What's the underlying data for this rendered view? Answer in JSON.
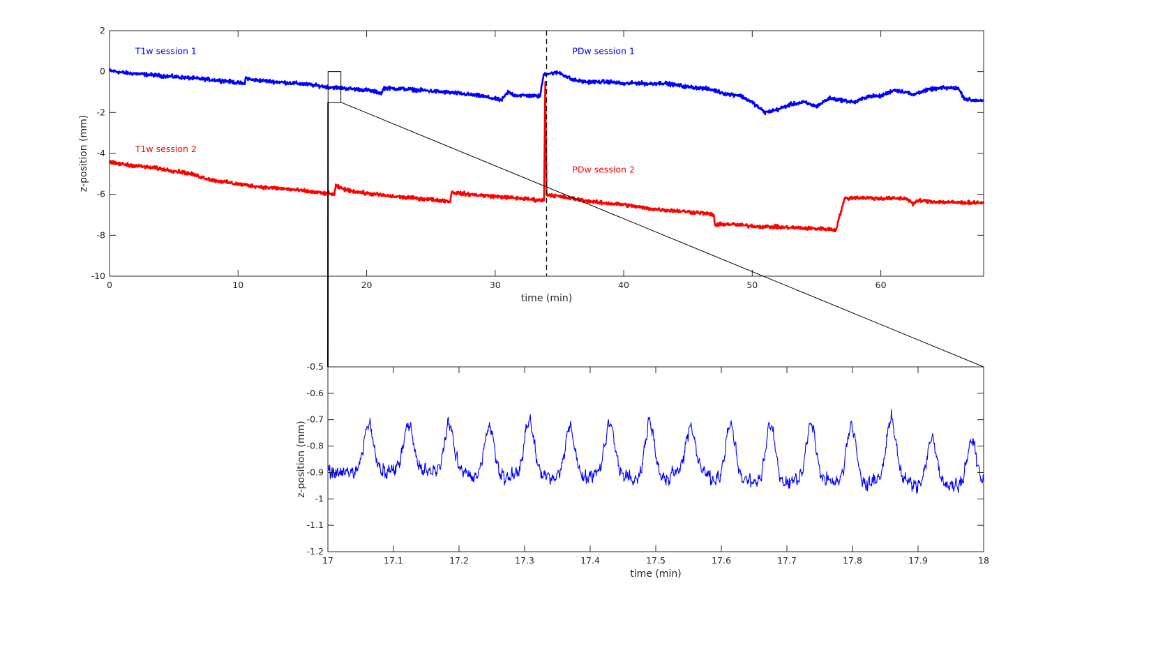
{
  "colors": {
    "blue": "#0000ff",
    "red": "#ff0000",
    "axis": "#262626",
    "background": "#ffffff"
  },
  "chart_data": [
    {
      "type": "line",
      "title": "",
      "xlabel": "time (min)",
      "ylabel": "z-position (mm)",
      "xlim": [
        0,
        68
      ],
      "ylim": [
        -10,
        2
      ],
      "xticks": [
        0,
        10,
        20,
        30,
        40,
        50,
        60
      ],
      "yticks": [
        -10,
        -8,
        -6,
        -4,
        -2,
        0,
        2
      ],
      "xtick_labels": [
        "0",
        "10",
        "20",
        "30",
        "40",
        "50",
        "60"
      ],
      "ytick_labels": [
        "-10",
        "-8",
        "-6",
        "-4",
        "-2",
        "0",
        "2"
      ],
      "grid": false,
      "annotations": [
        {
          "text": "T1w session 1",
          "x": 2,
          "y": 1.0,
          "color": "#0000ff"
        },
        {
          "text": "PDw session 1",
          "x": 36,
          "y": 1.0,
          "color": "#0000ff"
        },
        {
          "text": "T1w session 2",
          "x": 2,
          "y": -3.8,
          "color": "#ff0000"
        },
        {
          "text": "PDw session 2",
          "x": 36,
          "y": -4.8,
          "color": "#ff0000"
        }
      ],
      "vline": {
        "x": 34,
        "style": "dashed",
        "color": "#000000"
      },
      "zoom_box": {
        "x": [
          17,
          18
        ],
        "y": [
          -1.5,
          0
        ]
      },
      "series": [
        {
          "color": "#0000ff",
          "x": [
            0,
            1,
            3,
            5,
            7,
            9,
            10.5,
            10.6,
            11,
            13,
            15,
            17,
            18,
            20,
            21.2,
            21.3,
            23,
            25,
            27,
            29,
            30.5,
            31,
            31.5,
            33.5,
            33.7,
            33.8,
            34,
            35,
            36,
            37,
            38,
            39,
            40,
            41,
            42,
            43,
            44,
            45,
            46,
            47,
            48,
            49,
            50,
            50.5,
            51,
            52,
            53,
            54,
            55,
            56,
            57,
            58,
            59,
            60,
            61,
            62,
            62.5,
            63,
            64,
            65,
            66,
            66.5,
            67,
            68
          ],
          "y": [
            0.05,
            -0.05,
            -0.15,
            -0.25,
            -0.35,
            -0.45,
            -0.6,
            -0.3,
            -0.4,
            -0.5,
            -0.6,
            -0.75,
            -0.8,
            -0.9,
            -1.05,
            -0.8,
            -0.85,
            -0.95,
            -1.05,
            -1.2,
            -1.4,
            -1.0,
            -1.15,
            -1.2,
            -0.4,
            -0.1,
            -0.1,
            -0.05,
            -0.4,
            -0.5,
            -0.5,
            -0.5,
            -0.6,
            -0.55,
            -0.6,
            -0.55,
            -0.65,
            -0.75,
            -0.8,
            -0.9,
            -1.1,
            -1.15,
            -1.5,
            -1.75,
            -2.0,
            -1.85,
            -1.6,
            -1.5,
            -1.7,
            -1.3,
            -1.4,
            -1.5,
            -1.2,
            -1.2,
            -0.9,
            -1.0,
            -1.15,
            -1.0,
            -0.85,
            -0.8,
            -0.8,
            -1.3,
            -1.4,
            -1.4
          ]
        },
        {
          "color": "#ff0000",
          "x": [
            0,
            2,
            4,
            6,
            8,
            10,
            12,
            14,
            16,
            17.5,
            17.6,
            18.5,
            20,
            22,
            24,
            26,
            26.5,
            26.6,
            28,
            30,
            32,
            33.8,
            33.9,
            34,
            36,
            38,
            39,
            40,
            42,
            44,
            46,
            47,
            47.1,
            48,
            50,
            52,
            54,
            56,
            56.5,
            57,
            57.2,
            58,
            60,
            62,
            62.5,
            63,
            64,
            66,
            68
          ],
          "y": [
            -4.45,
            -4.6,
            -4.75,
            -4.95,
            -5.3,
            -5.5,
            -5.65,
            -5.75,
            -5.9,
            -6.0,
            -5.6,
            -5.8,
            -5.95,
            -6.1,
            -6.2,
            -6.3,
            -6.35,
            -5.9,
            -6.0,
            -6.1,
            -6.2,
            -6.3,
            -0.5,
            -6.0,
            -6.2,
            -6.4,
            -6.45,
            -6.5,
            -6.7,
            -6.8,
            -6.9,
            -7.0,
            -7.5,
            -7.45,
            -7.55,
            -7.6,
            -7.65,
            -7.7,
            -7.75,
            -6.6,
            -6.2,
            -6.15,
            -6.2,
            -6.2,
            -6.45,
            -6.3,
            -6.35,
            -6.4,
            -6.4
          ]
        }
      ]
    },
    {
      "type": "line",
      "title": "",
      "xlabel": "time (min)",
      "ylabel": "z-position (mm)",
      "xlim": [
        17,
        18
      ],
      "ylim": [
        -1.2,
        -0.5
      ],
      "xticks": [
        17,
        17.1,
        17.2,
        17.3,
        17.4,
        17.5,
        17.6,
        17.7,
        17.8,
        17.9,
        18
      ],
      "yticks": [
        -1.2,
        -1.1,
        -1,
        -0.9,
        -0.8,
        -0.7,
        -0.6,
        -0.5
      ],
      "xtick_labels": [
        "17",
        "17.1",
        "17.2",
        "17.3",
        "17.4",
        "17.5",
        "17.6",
        "17.7",
        "17.8",
        "17.9",
        "18"
      ],
      "ytick_labels": [
        "-1.2",
        "-1.1",
        "-1",
        "-0.9",
        "-0.8",
        "-0.7",
        "-0.6",
        "-0.5"
      ],
      "grid": false,
      "series": [
        {
          "color": "#0000ff",
          "signal": {
            "x_start": 17,
            "x_end": 18,
            "period_min": 0.0613,
            "peak_times": [
              17.062,
              17.123,
              17.185,
              17.246,
              17.307,
              17.369,
              17.43,
              17.491,
              17.553,
              17.614,
              17.675,
              17.737,
              17.798,
              17.859,
              17.921,
              17.982
            ],
            "peak_values": [
              -0.715,
              -0.72,
              -0.72,
              -0.72,
              -0.705,
              -0.725,
              -0.715,
              -0.705,
              -0.725,
              -0.72,
              -0.72,
              -0.715,
              -0.725,
              -0.695,
              -0.765,
              -0.78
            ],
            "trough_values": [
              -0.9,
              -0.89,
              -0.9,
              -0.92,
              -0.91,
              -0.92,
              -0.91,
              -0.93,
              -0.9,
              -0.93,
              -0.94,
              -0.93,
              -0.94,
              -0.93,
              -0.95,
              -0.95
            ]
          }
        }
      ]
    }
  ]
}
